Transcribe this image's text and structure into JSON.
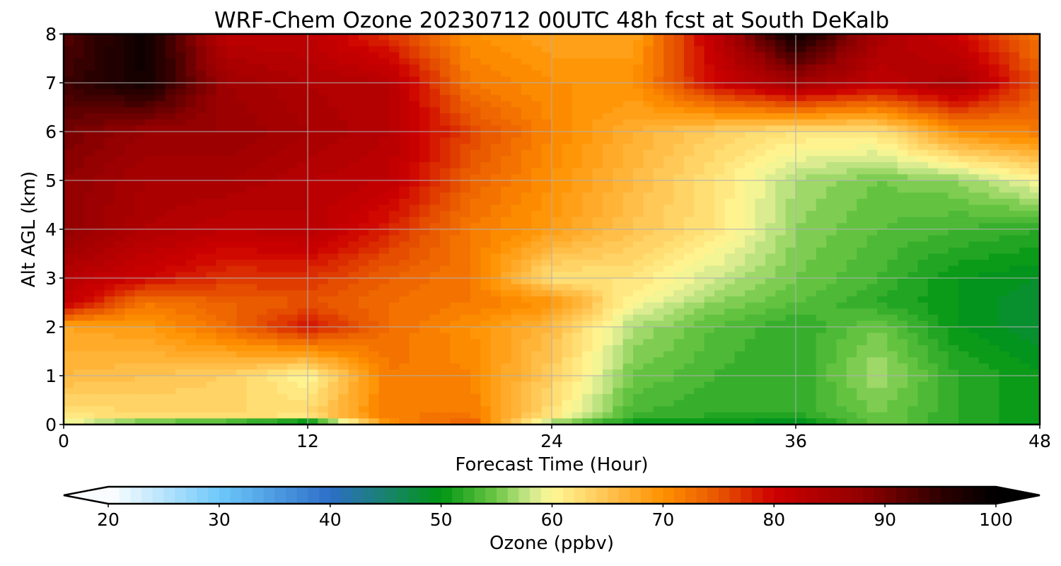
{
  "chart_data": {
    "type": "heatmap",
    "title": "WRF-Chem Ozone  20230712 00UTC 48h fcst at South DeKalb",
    "xlabel": "Forecast Time (Hour)",
    "ylabel": "Alt AGL (km)",
    "xlim": [
      0,
      48
    ],
    "ylim": [
      0,
      8
    ],
    "x_ticks": [
      "0",
      "12",
      "24",
      "36",
      "48"
    ],
    "y_ticks": [
      "0",
      "1",
      "2",
      "3",
      "4",
      "5",
      "6",
      "7",
      "8"
    ],
    "grid": true,
    "colorbar": {
      "label": "Ozone  (ppbv)",
      "min": 20,
      "max": 100,
      "extend": "both",
      "ticks": [
        "20",
        "30",
        "40",
        "50",
        "60",
        "70",
        "80",
        "90",
        "100"
      ]
    },
    "x_hours": [
      0,
      4,
      8,
      12,
      16,
      20,
      24,
      28,
      32,
      36,
      40,
      44,
      48
    ],
    "y_km": [
      0,
      0.2,
      1,
      2,
      2.5,
      3,
      4,
      5,
      6,
      7,
      8
    ],
    "ozone_ppbv": [
      [
        59,
        52,
        50,
        45,
        70,
        75,
        55,
        50,
        50,
        48,
        55,
        52,
        50
      ],
      [
        62,
        63,
        63,
        63,
        72,
        72,
        62,
        53,
        52,
        52,
        55,
        52,
        50
      ],
      [
        66,
        65,
        64,
        60,
        72,
        71,
        64,
        55,
        53,
        52,
        57,
        52,
        50
      ],
      [
        68,
        69,
        73,
        79,
        73,
        70,
        66,
        57,
        54,
        52,
        55,
        50,
        48
      ],
      [
        82,
        72,
        74,
        75,
        73,
        72,
        70,
        60,
        56,
        54,
        52,
        50,
        48
      ],
      [
        83,
        80,
        77,
        77,
        74,
        72,
        62,
        62,
        58,
        55,
        53,
        50,
        49
      ],
      [
        88,
        84,
        82,
        83,
        78,
        72,
        69,
        65,
        62,
        56,
        54,
        53,
        52
      ],
      [
        88,
        85,
        85,
        83,
        82,
        74,
        70,
        66,
        62,
        57,
        55,
        56,
        60
      ],
      [
        90,
        87,
        87,
        85,
        83,
        76,
        71,
        67,
        64,
        62,
        62,
        70,
        72
      ],
      [
        94,
        98,
        86,
        84,
        83,
        72,
        70,
        70,
        80,
        86,
        82,
        85,
        75
      ],
      [
        92,
        99,
        82,
        82,
        77,
        70,
        68,
        68,
        82,
        99,
        85,
        80,
        72
      ]
    ]
  }
}
